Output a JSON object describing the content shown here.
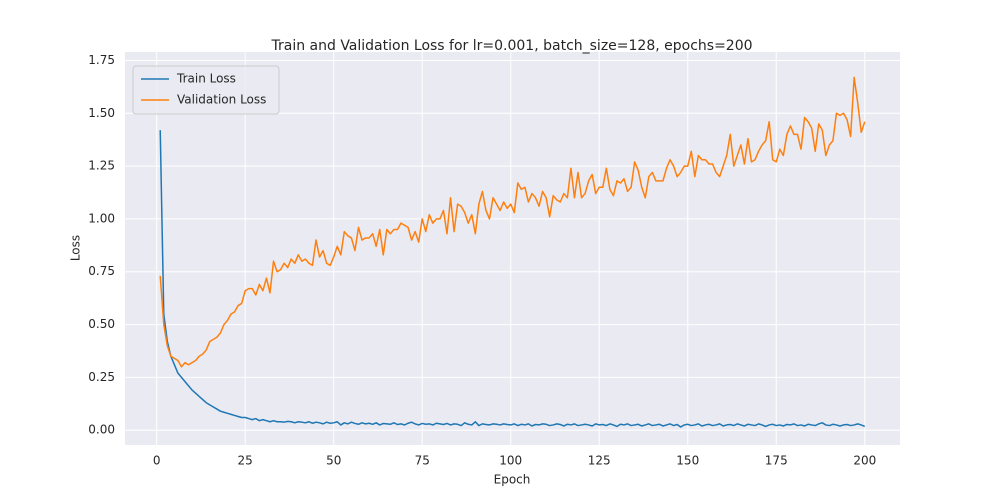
{
  "chart_data": {
    "type": "line",
    "title": "Train and Validation Loss for lr=0.001, batch_size=128, epochs=200",
    "xlabel": "Epoch",
    "ylabel": "Loss",
    "x": [
      1,
      2,
      3,
      4,
      5,
      6,
      7,
      8,
      9,
      10,
      11,
      12,
      13,
      14,
      15,
      16,
      17,
      18,
      19,
      20,
      21,
      22,
      23,
      24,
      25,
      26,
      27,
      28,
      29,
      30,
      31,
      32,
      33,
      34,
      35,
      36,
      37,
      38,
      39,
      40,
      41,
      42,
      43,
      44,
      45,
      46,
      47,
      48,
      49,
      50,
      51,
      52,
      53,
      54,
      55,
      56,
      57,
      58,
      59,
      60,
      61,
      62,
      63,
      64,
      65,
      66,
      67,
      68,
      69,
      70,
      71,
      72,
      73,
      74,
      75,
      76,
      77,
      78,
      79,
      80,
      81,
      82,
      83,
      84,
      85,
      86,
      87,
      88,
      89,
      90,
      91,
      92,
      93,
      94,
      95,
      96,
      97,
      98,
      99,
      100,
      101,
      102,
      103,
      104,
      105,
      106,
      107,
      108,
      109,
      110,
      111,
      112,
      113,
      114,
      115,
      116,
      117,
      118,
      119,
      120,
      121,
      122,
      123,
      124,
      125,
      126,
      127,
      128,
      129,
      130,
      131,
      132,
      133,
      134,
      135,
      136,
      137,
      138,
      139,
      140,
      141,
      142,
      143,
      144,
      145,
      146,
      147,
      148,
      149,
      150,
      151,
      152,
      153,
      154,
      155,
      156,
      157,
      158,
      159,
      160,
      161,
      162,
      163,
      164,
      165,
      166,
      167,
      168,
      169,
      170,
      171,
      172,
      173,
      174,
      175,
      176,
      177,
      178,
      179,
      180,
      181,
      182,
      183,
      184,
      185,
      186,
      187,
      188,
      189,
      190,
      191,
      192,
      193,
      194,
      195,
      196,
      197,
      198,
      199,
      200
    ],
    "series": [
      {
        "name": "Train Loss",
        "color": "#1f77b4",
        "values": [
          1.42,
          0.55,
          0.42,
          0.35,
          0.31,
          0.27,
          0.25,
          0.23,
          0.21,
          0.19,
          0.175,
          0.16,
          0.145,
          0.13,
          0.12,
          0.11,
          0.1,
          0.09,
          0.085,
          0.08,
          0.075,
          0.07,
          0.065,
          0.06,
          0.06,
          0.055,
          0.05,
          0.055,
          0.045,
          0.05,
          0.045,
          0.04,
          0.045,
          0.04,
          0.04,
          0.038,
          0.042,
          0.04,
          0.035,
          0.04,
          0.038,
          0.035,
          0.04,
          0.033,
          0.038,
          0.035,
          0.03,
          0.038,
          0.033,
          0.035,
          0.04,
          0.025,
          0.035,
          0.03,
          0.038,
          0.032,
          0.028,
          0.035,
          0.03,
          0.033,
          0.028,
          0.035,
          0.025,
          0.032,
          0.03,
          0.028,
          0.035,
          0.027,
          0.03,
          0.025,
          0.033,
          0.038,
          0.03,
          0.025,
          0.032,
          0.028,
          0.03,
          0.025,
          0.033,
          0.03,
          0.027,
          0.032,
          0.025,
          0.03,
          0.028,
          0.022,
          0.035,
          0.028,
          0.025,
          0.04,
          0.022,
          0.03,
          0.027,
          0.025,
          0.03,
          0.028,
          0.025,
          0.03,
          0.027,
          0.025,
          0.03,
          0.022,
          0.028,
          0.025,
          0.03,
          0.02,
          0.027,
          0.025,
          0.03,
          0.028,
          0.022,
          0.025,
          0.03,
          0.027,
          0.02,
          0.028,
          0.025,
          0.03,
          0.022,
          0.025,
          0.028,
          0.025,
          0.02,
          0.03,
          0.025,
          0.027,
          0.022,
          0.03,
          0.025,
          0.018,
          0.028,
          0.025,
          0.03,
          0.022,
          0.025,
          0.028,
          0.02,
          0.025,
          0.03,
          0.022,
          0.025,
          0.028,
          0.02,
          0.025,
          0.03,
          0.022,
          0.027,
          0.015,
          0.025,
          0.028,
          0.022,
          0.025,
          0.03,
          0.02,
          0.025,
          0.028,
          0.022,
          0.025,
          0.03,
          0.02,
          0.025,
          0.027,
          0.022,
          0.03,
          0.025,
          0.02,
          0.028,
          0.025,
          0.022,
          0.03,
          0.025,
          0.018,
          0.025,
          0.028,
          0.022,
          0.025,
          0.02,
          0.027,
          0.025,
          0.03,
          0.022,
          0.025,
          0.02,
          0.028,
          0.025,
          0.022,
          0.03,
          0.035,
          0.025,
          0.022,
          0.028,
          0.025,
          0.02,
          0.025,
          0.027,
          0.022,
          0.025,
          0.03,
          0.025,
          0.018
        ]
      },
      {
        "name": "Validation Loss",
        "color": "#ff7f0e",
        "values": [
          0.73,
          0.5,
          0.4,
          0.35,
          0.34,
          0.33,
          0.3,
          0.32,
          0.31,
          0.32,
          0.33,
          0.35,
          0.36,
          0.38,
          0.42,
          0.43,
          0.44,
          0.46,
          0.5,
          0.52,
          0.55,
          0.56,
          0.59,
          0.6,
          0.66,
          0.67,
          0.67,
          0.64,
          0.69,
          0.66,
          0.72,
          0.65,
          0.8,
          0.75,
          0.76,
          0.79,
          0.77,
          0.81,
          0.79,
          0.83,
          0.8,
          0.81,
          0.79,
          0.78,
          0.9,
          0.82,
          0.85,
          0.79,
          0.78,
          0.82,
          0.87,
          0.83,
          0.94,
          0.92,
          0.91,
          0.85,
          0.96,
          0.9,
          0.91,
          0.91,
          0.93,
          0.87,
          0.95,
          0.83,
          0.95,
          0.93,
          0.95,
          0.95,
          0.98,
          0.97,
          0.96,
          0.9,
          0.94,
          0.89,
          1.0,
          0.94,
          1.02,
          0.98,
          1.0,
          1.0,
          1.04,
          0.93,
          1.1,
          0.94,
          1.07,
          1.06,
          1.03,
          0.98,
          1.02,
          0.93,
          1.07,
          1.13,
          1.04,
          1.0,
          1.1,
          1.07,
          1.04,
          1.08,
          1.05,
          1.07,
          1.03,
          1.17,
          1.14,
          1.15,
          1.08,
          1.12,
          1.1,
          1.06,
          1.13,
          1.1,
          1.01,
          1.11,
          1.09,
          1.08,
          1.12,
          1.1,
          1.24,
          1.1,
          1.22,
          1.1,
          1.12,
          1.18,
          1.21,
          1.12,
          1.15,
          1.15,
          1.24,
          1.14,
          1.11,
          1.18,
          1.17,
          1.19,
          1.13,
          1.15,
          1.27,
          1.23,
          1.15,
          1.1,
          1.2,
          1.22,
          1.18,
          1.18,
          1.18,
          1.24,
          1.28,
          1.25,
          1.2,
          1.22,
          1.25,
          1.25,
          1.32,
          1.2,
          1.3,
          1.28,
          1.28,
          1.26,
          1.26,
          1.22,
          1.2,
          1.25,
          1.3,
          1.4,
          1.25,
          1.3,
          1.35,
          1.26,
          1.38,
          1.27,
          1.28,
          1.32,
          1.35,
          1.37,
          1.46,
          1.28,
          1.27,
          1.33,
          1.3,
          1.4,
          1.44,
          1.4,
          1.4,
          1.33,
          1.48,
          1.46,
          1.43,
          1.32,
          1.45,
          1.42,
          1.3,
          1.35,
          1.37,
          1.5,
          1.49,
          1.5,
          1.47,
          1.39,
          1.67,
          1.55,
          1.41,
          1.46
        ]
      }
    ],
    "xlim": [
      -8.95,
      209.95
    ],
    "xticks": [
      0,
      25,
      50,
      75,
      100,
      125,
      150,
      175,
      200
    ],
    "ylim": [
      -0.07,
      1.79
    ],
    "yticks": [
      {
        "value": 0,
        "label": "0.00"
      },
      {
        "value": 0.25,
        "label": "0.25"
      },
      {
        "value": 0.5,
        "label": "0.50"
      },
      {
        "value": 0.75,
        "label": "0.75"
      },
      {
        "value": 1,
        "label": "1.00"
      },
      {
        "value": 1.25,
        "label": "1.25"
      },
      {
        "value": 1.5,
        "label": "1.50"
      },
      {
        "value": 1.75,
        "label": "1.75"
      }
    ],
    "grid": true,
    "legend": "upper left"
  }
}
